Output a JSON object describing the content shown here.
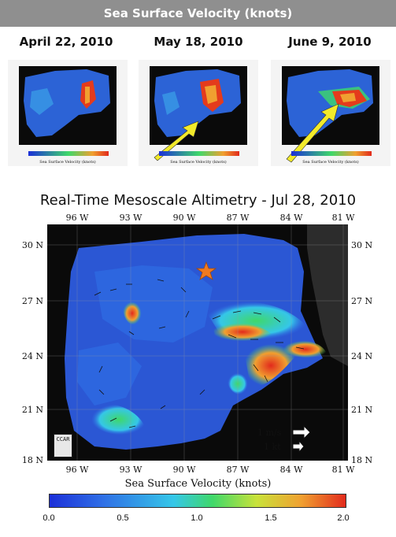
{
  "banner": {
    "title": "Sea Surface Velocity (knots)"
  },
  "thumbnails": [
    {
      "date": "April 22, 2010",
      "colorbar_caption": "Sea Surface Velocity (knots)"
    },
    {
      "date": "May 18, 2010",
      "colorbar_caption": "Sea Surface Velocity (knots)"
    },
    {
      "date": "June 9, 2010",
      "colorbar_caption": "Sea Surface Velocity (knots)"
    }
  ],
  "main_map": {
    "title": "Real-Time Mesoscale Altimetry - Jul 28, 2010",
    "lon_ticks": [
      "96 W",
      "93 W",
      "90 W",
      "87 W",
      "84 W",
      "81 W"
    ],
    "lat_ticks": [
      "30 N",
      "27 N",
      "24 N",
      "21 N",
      "18 N"
    ],
    "scale_legend": {
      "speed_ms": "1 m/s",
      "speed_kt": "1 kt"
    },
    "logo_text": "CCAR",
    "colorbar": {
      "caption": "Sea Surface Velocity (knots)",
      "min": 0.0,
      "max": 2.0,
      "tick_labels": [
        "0.0",
        "0.5",
        "1.0",
        "1.5",
        "2.0"
      ],
      "colors": [
        "#1b2fd8",
        "#2f6fe6",
        "#35c7e8",
        "#3fd86a",
        "#c9e23a",
        "#f0a030",
        "#e22a1c"
      ]
    },
    "marker": {
      "shape": "star",
      "color": "#f07a20"
    }
  },
  "colors": {
    "banner_bg": "#8f8f8f",
    "land": "#0a0a0a",
    "arrow": "#f2ea2a"
  }
}
